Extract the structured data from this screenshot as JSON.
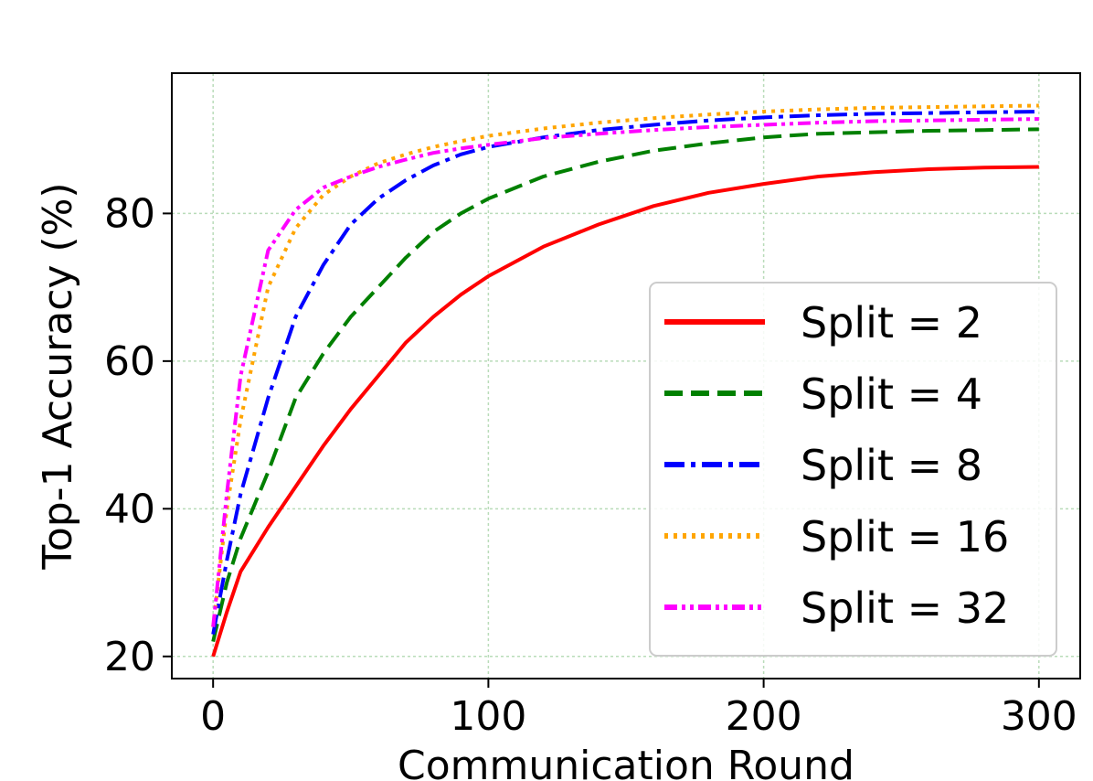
{
  "chart_data": {
    "type": "line",
    "title": "",
    "xlabel": "Communication Round",
    "ylabel": "Top-1 Accuracy (%)",
    "xlim": [
      -15,
      315
    ],
    "ylim": [
      17,
      99
    ],
    "xticks": [
      "0",
      "100",
      "200",
      "300"
    ],
    "xtick_values": [
      0,
      100,
      200,
      300
    ],
    "yticks": [
      "20",
      "40",
      "60",
      "80"
    ],
    "ytick_values": [
      20,
      40,
      60,
      80
    ],
    "grid": true,
    "legend_position": "lower-right",
    "series": [
      {
        "name": "Split = 2",
        "color": "#ff0000",
        "dash": "solid",
        "x": [
          0,
          5,
          10,
          20,
          30,
          40,
          50,
          60,
          70,
          80,
          90,
          100,
          120,
          140,
          160,
          180,
          200,
          220,
          240,
          260,
          280,
          300
        ],
        "y": [
          20,
          26,
          31.5,
          37.5,
          43,
          48.5,
          53.5,
          58,
          62.5,
          66,
          69,
          71.5,
          75.5,
          78.5,
          81,
          82.8,
          84,
          85,
          85.6,
          86,
          86.2,
          86.3
        ]
      },
      {
        "name": "Split = 4",
        "color": "#008000",
        "dash": "dashed",
        "x": [
          0,
          5,
          10,
          20,
          30,
          40,
          50,
          60,
          70,
          80,
          90,
          100,
          120,
          140,
          160,
          180,
          200,
          220,
          240,
          260,
          280,
          300
        ],
        "y": [
          22,
          30,
          36,
          45,
          55,
          61,
          66,
          70,
          74,
          77.5,
          80,
          82,
          85,
          87,
          88.5,
          89.5,
          90.3,
          90.8,
          91,
          91.2,
          91.3,
          91.4
        ]
      },
      {
        "name": "Split = 8",
        "color": "#0000ff",
        "dash": "dashdot",
        "x": [
          0,
          5,
          10,
          20,
          30,
          40,
          50,
          60,
          70,
          80,
          90,
          100,
          120,
          140,
          160,
          180,
          200,
          220,
          240,
          260,
          280,
          300
        ],
        "y": [
          23,
          33,
          42,
          55,
          66,
          73,
          78.5,
          82,
          84.5,
          86.5,
          88,
          89,
          90.3,
          91.3,
          92,
          92.6,
          93,
          93.3,
          93.5,
          93.6,
          93.7,
          93.8
        ]
      },
      {
        "name": "Split = 16",
        "color": "#ffa500",
        "dash": "dotted",
        "x": [
          0,
          5,
          10,
          20,
          30,
          40,
          50,
          60,
          70,
          80,
          90,
          100,
          120,
          140,
          160,
          180,
          200,
          220,
          240,
          260,
          280,
          300
        ],
        "y": [
          24,
          40,
          52,
          70,
          78,
          82.5,
          85,
          86.8,
          88,
          89,
          89.8,
          90.5,
          91.5,
          92.3,
          92.9,
          93.4,
          93.8,
          94.1,
          94.3,
          94.4,
          94.5,
          94.6
        ]
      },
      {
        "name": "Split = 32",
        "color": "#ff00ff",
        "dash": "dashdotdot",
        "x": [
          0,
          5,
          10,
          20,
          30,
          40,
          50,
          60,
          70,
          80,
          90,
          100,
          120,
          140,
          160,
          180,
          200,
          220,
          240,
          260,
          280,
          300
        ],
        "y": [
          24,
          42,
          58,
          75,
          80.5,
          83.5,
          85,
          86.3,
          87.3,
          88.2,
          88.8,
          89.3,
          90.2,
          90.8,
          91.3,
          91.7,
          92,
          92.3,
          92.5,
          92.6,
          92.7,
          92.8
        ]
      }
    ]
  }
}
